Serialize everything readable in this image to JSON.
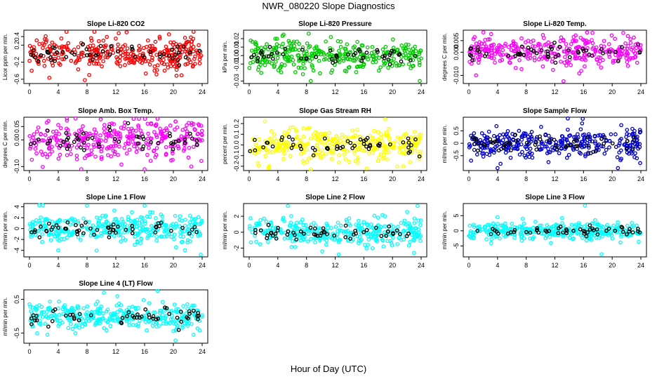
{
  "figure": {
    "title": "NWR_080220  Slope Diagnostics",
    "xlabel": "Hour of Day (UTC)"
  },
  "chart_data": [
    {
      "type": "scatter",
      "title": "Slope Li-820 CO2",
      "ylabel": "Licor ppm per min.",
      "xlim": [
        0,
        24
      ],
      "ylim": [
        -0.7,
        0.55
      ],
      "xticks": [
        "0",
        "4",
        "8",
        "12",
        "16",
        "20",
        "24"
      ],
      "yticks": [
        -0.6,
        -0.2,
        0.2,
        0.4
      ],
      "ytick_labels": [
        "-0.6",
        "-0.2",
        "0.2",
        "0.4"
      ],
      "color": "#ff0000",
      "spread": 0.2,
      "extremes": [
        [
          7.7,
          -0.62
        ],
        [
          8.3,
          -0.5
        ],
        [
          12.4,
          0.48
        ],
        [
          13.5,
          0.5
        ],
        [
          0.3,
          -0.4
        ]
      ]
    },
    {
      "type": "scatter",
      "title": "Slope Li-820 Pressure",
      "ylabel": "kPa per min.",
      "xlim": [
        0,
        24
      ],
      "ylim": [
        -0.033,
        0.03
      ],
      "xticks": [
        "0",
        "4",
        "8",
        "12",
        "16",
        "20",
        "24"
      ],
      "yticks": [
        -0.03,
        -0.01,
        0.0,
        0.01,
        0.02
      ],
      "ytick_labels": [
        "-0.03",
        "-0.01",
        "0.00",
        "0.01",
        "0.02"
      ],
      "color": "#00cc00",
      "spread": 0.009,
      "extremes": [
        [
          8.3,
          0.026
        ],
        [
          8.6,
          -0.03
        ],
        [
          7.5,
          -0.022
        ],
        [
          23.8,
          -0.03
        ],
        [
          1.0,
          0.013
        ]
      ]
    },
    {
      "type": "scatter",
      "title": "Slope Li-820 Temp.",
      "ylabel": "degrees C per min.",
      "xlim": [
        0,
        24
      ],
      "ylim": [
        -0.0135,
        0.0095
      ],
      "xticks": [
        "0",
        "4",
        "8",
        "12",
        "16",
        "20",
        "24"
      ],
      "yticks": [
        -0.01,
        0.0,
        0.005
      ],
      "ytick_labels": [
        "-0.010",
        "0.000",
        "0.005"
      ],
      "color": "#ff00ff",
      "spread": 0.003,
      "extremes": [
        [
          16.5,
          0.0085
        ],
        [
          13.2,
          -0.0125
        ],
        [
          1.0,
          -0.01
        ],
        [
          0.8,
          0.0065
        ]
      ]
    },
    {
      "type": "scatter",
      "title": "Slope Amb. Box Temp.",
      "ylabel": "degrees C per min.",
      "xlim": [
        0,
        24
      ],
      "ylim": [
        -0.115,
        0.085
      ],
      "xticks": [
        "0",
        "4",
        "8",
        "12",
        "16",
        "20",
        "24"
      ],
      "yticks": [
        -0.1,
        0.0,
        0.05
      ],
      "ytick_labels": [
        "-0.10",
        "0.00",
        "0.05"
      ],
      "color": "#ff00ff",
      "spread": 0.035,
      "extremes": [
        [
          5.2,
          0.08
        ],
        [
          6.4,
          0.08
        ],
        [
          7.2,
          -0.11
        ],
        [
          16.0,
          -0.11
        ],
        [
          22.5,
          -0.1
        ]
      ]
    },
    {
      "type": "scatter",
      "title": "Slope Gas Stream RH",
      "ylabel": "percent per min.",
      "xlim": [
        0,
        24
      ],
      "ylim": [
        -0.24,
        0.26
      ],
      "xticks": [
        "0",
        "4",
        "8",
        "12",
        "16",
        "20",
        "24"
      ],
      "yticks": [
        -0.2,
        -0.1,
        0.0,
        0.1,
        0.2
      ],
      "ytick_labels": [
        "-0.2",
        "-0.1",
        "0.0",
        "0.1",
        "0.2"
      ],
      "color": "#ffff00",
      "spread": 0.08,
      "extremes": [
        [
          2.2,
          0.22
        ],
        [
          8.6,
          -0.23
        ],
        [
          16.4,
          -0.22
        ],
        [
          21.5,
          -0.2
        ]
      ]
    },
    {
      "type": "scatter",
      "title": "Slope Sample Flow",
      "ylabel": "ml/min per min.",
      "xlim": [
        0,
        24
      ],
      "ylim": [
        -1.1,
        1.05
      ],
      "xticks": [
        "0",
        "4",
        "8",
        "12",
        "16",
        "20",
        "24"
      ],
      "yticks": [
        -0.5,
        0.0,
        0.5
      ],
      "ytick_labels": [
        "-0.5",
        "0",
        "0.5"
      ],
      "color": "#0000cc",
      "spread": 0.28,
      "extremes": [
        [
          4.0,
          -1.0
        ],
        [
          13.8,
          1.0
        ],
        [
          20.8,
          -1.0
        ],
        [
          0.3,
          -0.7
        ],
        [
          23.9,
          -0.8
        ]
      ]
    },
    {
      "type": "scatter",
      "title": "Slope Line 1 Flow",
      "ylabel": "ml/min per min.",
      "xlim": [
        0,
        24
      ],
      "ylim": [
        -5.2,
        4.6
      ],
      "xticks": [
        "0",
        "4",
        "8",
        "12",
        "16",
        "20",
        "24"
      ],
      "yticks": [
        -4,
        -2,
        0,
        2,
        4
      ],
      "ytick_labels": [
        "-4",
        "-2",
        "0",
        "2",
        "4"
      ],
      "color": "#00ffff",
      "spread": 1.3,
      "extremes": [
        [
          8.0,
          4.2
        ],
        [
          16.0,
          4.2
        ],
        [
          23.8,
          -4.8
        ],
        [
          4.0,
          -4.0
        ]
      ]
    },
    {
      "type": "scatter",
      "title": "Slope Line 2 Flow",
      "ylabel": "ml/min per min.",
      "xlim": [
        0,
        24
      ],
      "ylim": [
        -3.1,
        3.6
      ],
      "xticks": [
        "0",
        "4",
        "8",
        "12",
        "16",
        "20",
        "24"
      ],
      "yticks": [
        -2,
        0,
        2
      ],
      "ytick_labels": [
        "-2",
        "0",
        "2"
      ],
      "color": "#00ffff",
      "spread": 0.85,
      "extremes": [
        [
          5.4,
          3.3
        ],
        [
          23.5,
          3.3
        ],
        [
          12.5,
          -2.8
        ],
        [
          23.0,
          -2.6
        ]
      ]
    },
    {
      "type": "scatter",
      "title": "Slope Line 3 Flow",
      "ylabel": "ml/min per min.",
      "xlim": [
        0,
        24
      ],
      "ylim": [
        -8.6,
        9.0
      ],
      "xticks": [
        "0",
        "4",
        "8",
        "12",
        "16",
        "20",
        "24"
      ],
      "yticks": [
        -5,
        0,
        5
      ],
      "ytick_labels": [
        "-5",
        "0",
        "5"
      ],
      "color": "#00ffff",
      "spread": 1.4,
      "extremes": [
        [
          16.2,
          8.3
        ],
        [
          18.5,
          -7.7
        ],
        [
          4.0,
          4.5
        ],
        [
          7.5,
          4.0
        ],
        [
          13.0,
          4.2
        ]
      ]
    },
    {
      "type": "scatter",
      "title": "Slope Line 4 (LT) Flow",
      "ylabel": "ml/min per min.",
      "xlim": [
        0,
        24
      ],
      "ylim": [
        -0.8,
        0.78
      ],
      "xticks": [
        "0",
        "4",
        "8",
        "12",
        "16",
        "20",
        "24"
      ],
      "yticks": [
        -0.5,
        0.5
      ],
      "ytick_labels": [
        "-0.5",
        "0.5"
      ],
      "color": "#00ffff",
      "spread": 0.2,
      "extremes": [
        [
          17.8,
          0.75
        ],
        [
          20.3,
          -0.72
        ],
        [
          2.5,
          -0.55
        ],
        [
          22.8,
          -0.55
        ]
      ]
    }
  ]
}
